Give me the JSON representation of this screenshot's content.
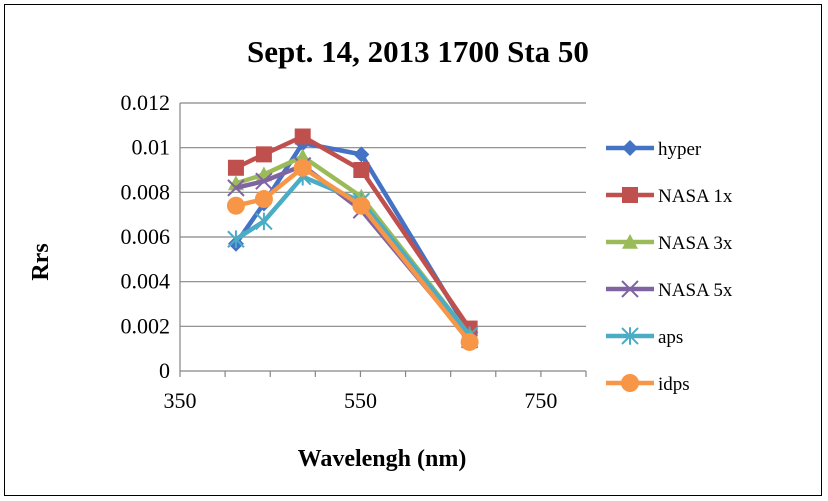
{
  "chart_data": {
    "type": "line",
    "title": "Sept. 14, 2013 1700 Sta 50",
    "xlabel": "Wavelengh (nm)",
    "ylabel": "Rrs",
    "xlim": [
      350,
      800
    ],
    "ylim": [
      0,
      0.012
    ],
    "x_ticks": [
      "350",
      "550",
      "750"
    ],
    "x_tick_values": [
      350,
      550,
      750
    ],
    "y_ticks": [
      "0",
      "0.002",
      "0.004",
      "0.006",
      "0.008",
      "0.01",
      "0.012"
    ],
    "y_tick_values": [
      0,
      0.002,
      0.004,
      0.006,
      0.008,
      0.01,
      0.012
    ],
    "grid": "horizontal",
    "legend_position": "right",
    "series": [
      {
        "name": "hyper",
        "color": "#4472C4",
        "marker": "diamond",
        "x": [
          412,
          443,
          486,
          551,
          671
        ],
        "y": [
          0.0057,
          0.0075,
          0.0102,
          0.0097,
          0.0017
        ]
      },
      {
        "name": "NASA 1x",
        "color": "#C0504D",
        "marker": "square",
        "x": [
          412,
          443,
          486,
          551,
          671
        ],
        "y": [
          0.0091,
          0.0097,
          0.0105,
          0.009,
          0.0019
        ]
      },
      {
        "name": "NASA 3x",
        "color": "#9BBB59",
        "marker": "triangle",
        "x": [
          412,
          443,
          486,
          551,
          671
        ],
        "y": [
          0.0084,
          0.0088,
          0.0096,
          0.0078,
          0.0016
        ]
      },
      {
        "name": "NASA 5x",
        "color": "#8064A2",
        "marker": "x",
        "x": [
          412,
          443,
          486,
          551,
          671
        ],
        "y": [
          0.0082,
          0.0085,
          0.0092,
          0.0072,
          0.0014
        ]
      },
      {
        "name": "aps",
        "color": "#4BACC6",
        "marker": "star",
        "x": [
          412,
          443,
          486,
          551,
          671
        ],
        "y": [
          0.0059,
          0.0067,
          0.0087,
          0.0076,
          0.0016
        ]
      },
      {
        "name": "idps",
        "color": "#F79646",
        "marker": "circle",
        "x": [
          412,
          443,
          486,
          551,
          671
        ],
        "y": [
          0.0074,
          0.0077,
          0.0091,
          0.0074,
          0.0013
        ]
      }
    ]
  }
}
